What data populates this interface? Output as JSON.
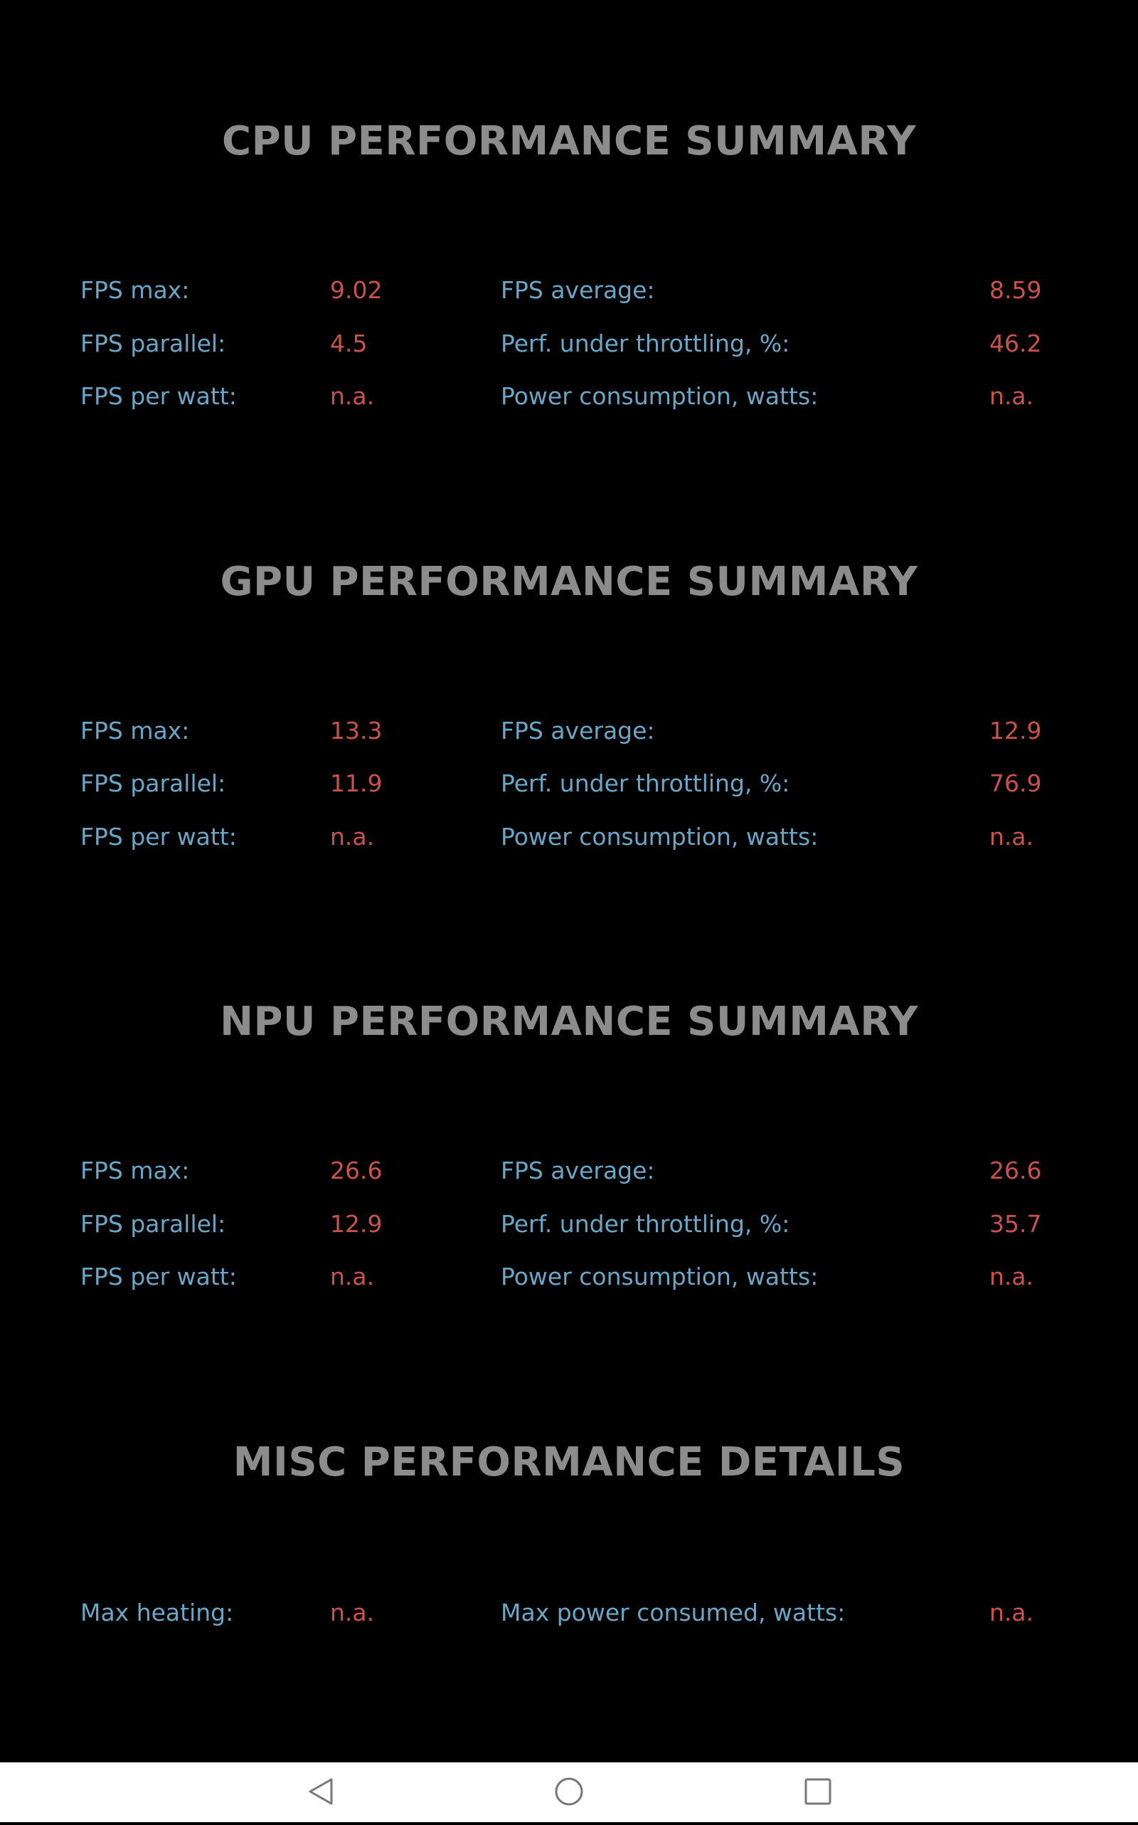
{
  "sections": [
    {
      "title": "CPU PERFORMANCE SUMMARY",
      "rows": [
        [
          "FPS max:",
          "9.02",
          "FPS average:",
          "8.59"
        ],
        [
          "FPS parallel:",
          "4.5",
          "Perf. under throttling, %:",
          "46.2"
        ],
        [
          "FPS per watt:",
          "n.a.",
          "Power consumption, watts:",
          "n.a."
        ]
      ]
    },
    {
      "title": "GPU PERFORMANCE SUMMARY",
      "rows": [
        [
          "FPS max:",
          "13.3",
          "FPS average:",
          "12.9"
        ],
        [
          "FPS parallel:",
          "11.9",
          "Perf. under throttling, %:",
          "76.9"
        ],
        [
          "FPS per watt:",
          "n.a.",
          "Power consumption, watts:",
          "n.a."
        ]
      ]
    },
    {
      "title": "NPU PERFORMANCE SUMMARY",
      "rows": [
        [
          "FPS max:",
          "26.6",
          "FPS average:",
          "26.6"
        ],
        [
          "FPS parallel:",
          "12.9",
          "Perf. under throttling, %:",
          "35.7"
        ],
        [
          "FPS per watt:",
          "n.a.",
          "Power consumption, watts:",
          "n.a."
        ]
      ]
    },
    {
      "title": "MISC PERFORMANCE DETAILS",
      "rows": [
        [
          "Max heating:",
          "n.a.",
          "Max power consumed, watts:",
          "n.a."
        ]
      ]
    }
  ]
}
